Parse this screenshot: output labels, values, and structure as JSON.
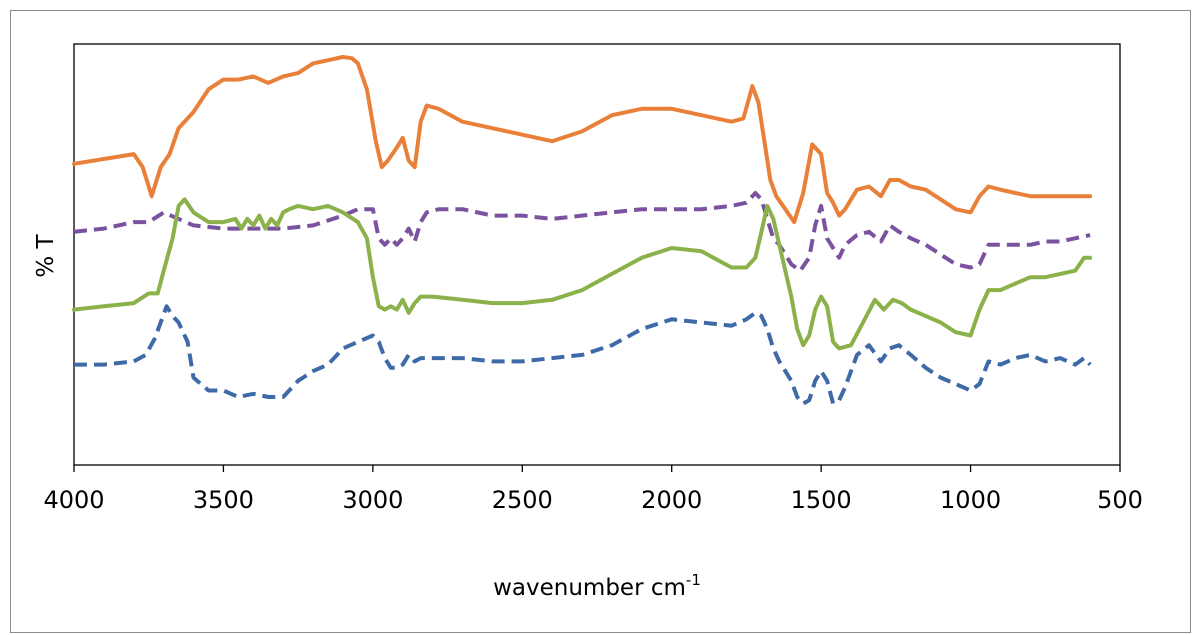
{
  "chart_data": {
    "type": "line",
    "title": "",
    "xlabel": "wavenumber cm",
    "xlabel_superscript": "-1",
    "ylabel": "% T",
    "xlim": [
      4000,
      500
    ],
    "x_reversed": true,
    "x_ticks": [
      4000,
      3500,
      3000,
      2500,
      2000,
      1500,
      1000,
      500
    ],
    "y_ticks_shown": false,
    "grid": false,
    "legend": "none",
    "series": [
      {
        "color": "#e8803a",
        "dash": "solid",
        "x": [
          4000,
          3800,
          3770,
          3740,
          3710,
          3680,
          3650,
          3600,
          3550,
          3500,
          3450,
          3400,
          3350,
          3300,
          3250,
          3200,
          3150,
          3100,
          3070,
          3050,
          3020,
          2990,
          2970,
          2950,
          2920,
          2900,
          2880,
          2860,
          2840,
          2820,
          2780,
          2700,
          2600,
          2500,
          2400,
          2300,
          2200,
          2100,
          2000,
          1900,
          1800,
          1760,
          1730,
          1710,
          1690,
          1670,
          1650,
          1620,
          1590,
          1560,
          1530,
          1500,
          1480,
          1460,
          1440,
          1420,
          1380,
          1340,
          1300,
          1270,
          1240,
          1200,
          1150,
          1100,
          1050,
          1000,
          970,
          940,
          900,
          850,
          800,
          750,
          700,
          650,
          600
        ],
        "y": [
          14.5,
          16.0,
          14.0,
          9.5,
          14.0,
          16.0,
          20.0,
          22.5,
          26.0,
          27.5,
          27.5,
          28.0,
          27.0,
          28.0,
          28.5,
          30.0,
          30.5,
          31.0,
          30.8,
          30.0,
          26.0,
          18.0,
          14.0,
          15.0,
          17.0,
          18.5,
          15.0,
          14.0,
          21.0,
          23.5,
          23.0,
          21.0,
          20.0,
          19.0,
          18.0,
          19.5,
          22.0,
          23.0,
          23.0,
          22.0,
          21.0,
          21.5,
          26.5,
          24.0,
          18.0,
          12.0,
          9.5,
          7.5,
          5.5,
          10.0,
          17.5,
          16.0,
          10.0,
          8.5,
          6.5,
          7.5,
          10.5,
          11.0,
          9.5,
          12.0,
          12.0,
          11.0,
          10.5,
          9.0,
          7.5,
          7.0,
          9.5,
          11.0,
          10.5,
          10.0,
          9.5,
          9.5,
          9.5,
          9.5,
          9.5
        ]
      },
      {
        "color": "#7a52a0",
        "dash": "dashed",
        "x": [
          4000,
          3900,
          3800,
          3750,
          3700,
          3650,
          3600,
          3500,
          3400,
          3300,
          3200,
          3100,
          3050,
          3000,
          2980,
          2960,
          2940,
          2920,
          2900,
          2880,
          2860,
          2840,
          2820,
          2780,
          2700,
          2600,
          2500,
          2400,
          2300,
          2200,
          2100,
          2000,
          1900,
          1800,
          1750,
          1720,
          1700,
          1680,
          1660,
          1640,
          1620,
          1600,
          1570,
          1540,
          1520,
          1500,
          1480,
          1460,
          1440,
          1420,
          1380,
          1340,
          1300,
          1270,
          1240,
          1200,
          1150,
          1100,
          1050,
          1000,
          970,
          940,
          900,
          850,
          800,
          750,
          700,
          650,
          600
        ],
        "y": [
          4.0,
          4.5,
          5.5,
          5.5,
          7.0,
          6.0,
          5.0,
          4.5,
          4.5,
          4.5,
          5.0,
          6.5,
          7.5,
          7.5,
          3.0,
          2.0,
          3.0,
          2.0,
          3.0,
          4.5,
          2.5,
          5.5,
          7.0,
          7.5,
          7.5,
          6.5,
          6.5,
          6.0,
          6.5,
          7.0,
          7.5,
          7.5,
          7.5,
          8.0,
          8.5,
          10.0,
          9.0,
          6.0,
          3.0,
          2.0,
          0.5,
          -1.0,
          -2.0,
          0.0,
          5.0,
          8.0,
          3.0,
          1.5,
          0.0,
          2.0,
          3.5,
          4.0,
          2.5,
          5.0,
          4.0,
          3.0,
          2.0,
          0.5,
          -1.0,
          -1.5,
          -1.0,
          2.0,
          2.0,
          2.0,
          2.0,
          2.5,
          2.5,
          3.0,
          3.5
        ]
      },
      {
        "color": "#8bb14a",
        "dash": "solid",
        "x": [
          4000,
          3900,
          3800,
          3750,
          3720,
          3700,
          3670,
          3650,
          3630,
          3600,
          3550,
          3500,
          3460,
          3440,
          3420,
          3400,
          3380,
          3360,
          3340,
          3320,
          3300,
          3280,
          3250,
          3200,
          3150,
          3100,
          3050,
          3020,
          3000,
          2980,
          2960,
          2940,
          2920,
          2900,
          2880,
          2860,
          2840,
          2800,
          2700,
          2600,
          2500,
          2400,
          2300,
          2200,
          2100,
          2000,
          1900,
          1800,
          1750,
          1720,
          1700,
          1680,
          1660,
          1640,
          1620,
          1600,
          1580,
          1560,
          1540,
          1520,
          1500,
          1480,
          1460,
          1440,
          1400,
          1360,
          1320,
          1290,
          1260,
          1230,
          1200,
          1150,
          1100,
          1050,
          1000,
          970,
          940,
          900,
          850,
          800,
          750,
          700,
          650,
          620,
          600
        ],
        "y": [
          -8.0,
          -7.5,
          -7.0,
          -5.5,
          -5.5,
          -2.0,
          3.0,
          8.0,
          9.0,
          7.0,
          5.5,
          5.5,
          6.0,
          4.5,
          6.0,
          5.0,
          6.5,
          4.5,
          6.0,
          5.0,
          7.0,
          7.5,
          8.0,
          7.5,
          8.0,
          7.0,
          5.5,
          3.0,
          -3.0,
          -7.5,
          -8.0,
          -7.5,
          -8.0,
          -6.5,
          -8.5,
          -7.0,
          -6.0,
          -6.0,
          -6.5,
          -7.0,
          -7.0,
          -6.5,
          -5.0,
          -2.5,
          0.0,
          1.5,
          1.0,
          -1.5,
          -1.5,
          0.0,
          4.0,
          8.0,
          6.0,
          2.0,
          -2.0,
          -6.0,
          -11.0,
          -13.5,
          -12.0,
          -8.0,
          -6.0,
          -7.5,
          -13.0,
          -14.0,
          -13.5,
          -10.0,
          -6.5,
          -8.0,
          -6.5,
          -7.0,
          -8.0,
          -9.0,
          -10.0,
          -11.5,
          -12.0,
          -8.0,
          -5.0,
          -5.0,
          -4.0,
          -3.0,
          -3.0,
          -2.5,
          -2.0,
          0.0,
          0.0
        ]
      },
      {
        "color": "#3e6aa8",
        "dash": "dashed",
        "x": [
          4000,
          3900,
          3800,
          3760,
          3730,
          3710,
          3690,
          3670,
          3650,
          3620,
          3600,
          3550,
          3500,
          3450,
          3400,
          3350,
          3300,
          3250,
          3200,
          3150,
          3100,
          3050,
          3000,
          2980,
          2960,
          2940,
          2920,
          2900,
          2880,
          2860,
          2840,
          2800,
          2700,
          2600,
          2500,
          2400,
          2300,
          2200,
          2100,
          2000,
          1900,
          1800,
          1750,
          1720,
          1700,
          1680,
          1660,
          1640,
          1620,
          1600,
          1580,
          1560,
          1540,
          1520,
          1500,
          1480,
          1460,
          1440,
          1420,
          1380,
          1340,
          1300,
          1270,
          1240,
          1200,
          1150,
          1100,
          1050,
          1000,
          970,
          940,
          900,
          850,
          800,
          750,
          700,
          650,
          620,
          600
        ],
        "y": [
          -16.5,
          -16.5,
          -16.0,
          -15.0,
          -12.5,
          -10.0,
          -7.5,
          -9.0,
          -10.0,
          -13.0,
          -18.5,
          -20.5,
          -20.5,
          -21.5,
          -21.0,
          -21.5,
          -21.5,
          -19.0,
          -17.5,
          -16.5,
          -14.0,
          -13.0,
          -12.0,
          -13.0,
          -15.5,
          -17.0,
          -17.0,
          -16.5,
          -15.0,
          -16.0,
          -15.5,
          -15.5,
          -15.5,
          -16.0,
          -16.0,
          -15.5,
          -15.0,
          -13.5,
          -11.0,
          -9.5,
          -10.0,
          -10.5,
          -9.5,
          -8.5,
          -9.0,
          -11.0,
          -14.0,
          -16.0,
          -17.5,
          -19.0,
          -21.5,
          -22.5,
          -22.0,
          -19.0,
          -17.5,
          -19.0,
          -22.5,
          -22.0,
          -20.0,
          -15.0,
          -13.5,
          -16.0,
          -14.0,
          -13.5,
          -15.0,
          -17.0,
          -18.5,
          -19.5,
          -20.5,
          -19.5,
          -16.0,
          -16.5,
          -15.5,
          -15.0,
          -16.0,
          -15.5,
          -16.5,
          -15.5,
          -16.5
        ]
      }
    ]
  }
}
